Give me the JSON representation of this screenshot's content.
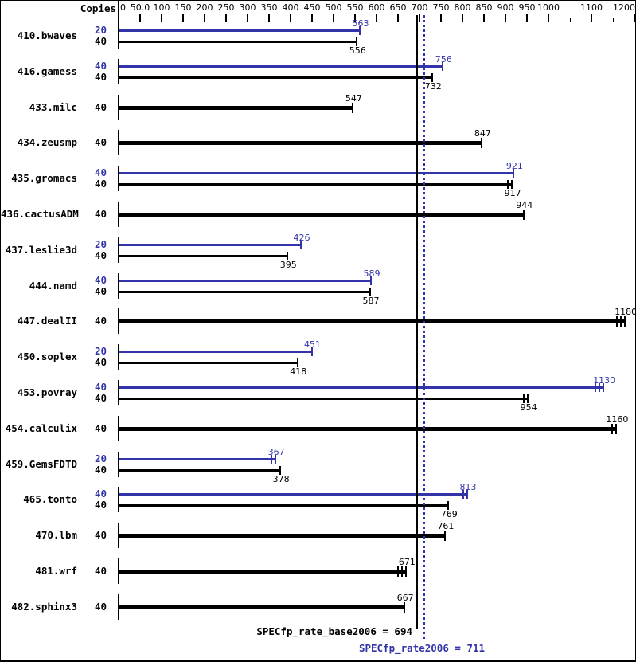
{
  "header": {
    "copies_label": "Copies"
  },
  "colors": {
    "peak": "#3333aa",
    "base": "#000000"
  },
  "summary": {
    "base_label": "SPECfp_rate_base2006 = 694",
    "peak_label": "SPECfp_rate2006 = 711",
    "base_value": 694,
    "peak_value": 711
  },
  "chart_data": {
    "type": "bar",
    "orientation": "horizontal",
    "title": "",
    "xlabel": "",
    "ylabel": "",
    "axis": {
      "min": 0,
      "max": 1200,
      "labeled_ticks": [
        {
          "v": 0,
          "label": "0"
        },
        {
          "v": 50,
          "label": "50.0"
        },
        {
          "v": 100,
          "label": "100"
        },
        {
          "v": 150,
          "label": "150"
        },
        {
          "v": 200,
          "label": "200"
        },
        {
          "v": 250,
          "label": "250"
        },
        {
          "v": 300,
          "label": "300"
        },
        {
          "v": 350,
          "label": "350"
        },
        {
          "v": 400,
          "label": "400"
        },
        {
          "v": 450,
          "label": "450"
        },
        {
          "v": 500,
          "label": "500"
        },
        {
          "v": 550,
          "label": "550"
        },
        {
          "v": 600,
          "label": "600"
        },
        {
          "v": 650,
          "label": "650"
        },
        {
          "v": 700,
          "label": "700"
        },
        {
          "v": 750,
          "label": "750"
        },
        {
          "v": 800,
          "label": "800"
        },
        {
          "v": 850,
          "label": "850"
        },
        {
          "v": 900,
          "label": "900"
        },
        {
          "v": 950,
          "label": "950"
        },
        {
          "v": 1000,
          "label": "1000"
        },
        {
          "v": 1100,
          "label": "1100"
        },
        {
          "v": 1200,
          "label": "1200"
        }
      ],
      "minor_ticks": [
        1050,
        1150
      ]
    },
    "reference_lines": [
      {
        "name": "base",
        "value": 694,
        "style": "solid",
        "color": "#000000"
      },
      {
        "name": "peak",
        "value": 711,
        "style": "dotted",
        "color": "#3333aa"
      }
    ],
    "benchmarks": [
      {
        "name": "410.bwaves",
        "bars": [
          {
            "copies": "20",
            "value": 563,
            "series": "peak",
            "style": "thin",
            "caps": 1,
            "label_pos": "above"
          },
          {
            "copies": "40",
            "value": 556,
            "series": "base",
            "style": "thin",
            "caps": 1,
            "label_pos": "below"
          }
        ]
      },
      {
        "name": "416.gamess",
        "bars": [
          {
            "copies": "40",
            "value": 756,
            "series": "peak",
            "style": "thin",
            "caps": 1,
            "label_pos": "above"
          },
          {
            "copies": "40",
            "value": 732,
            "series": "base",
            "style": "thin",
            "caps": 1,
            "label_pos": "below"
          }
        ]
      },
      {
        "name": "433.milc",
        "bars": [
          {
            "copies": "40",
            "value": 547,
            "series": "base",
            "style": "thick",
            "caps": 1,
            "label_pos": "above"
          }
        ]
      },
      {
        "name": "434.zeusmp",
        "bars": [
          {
            "copies": "40",
            "value": 847,
            "series": "base",
            "style": "thick",
            "caps": 1,
            "label_pos": "above"
          }
        ]
      },
      {
        "name": "435.gromacs",
        "bars": [
          {
            "copies": "40",
            "value": 921,
            "series": "peak",
            "style": "thin",
            "caps": 1,
            "label_pos": "above"
          },
          {
            "copies": "40",
            "value": 917,
            "series": "base",
            "style": "thin",
            "caps": 2,
            "label_pos": "below"
          }
        ]
      },
      {
        "name": "436.cactusADM",
        "bars": [
          {
            "copies": "40",
            "value": 944,
            "series": "base",
            "style": "thick",
            "caps": 1,
            "label_pos": "above"
          }
        ]
      },
      {
        "name": "437.leslie3d",
        "bars": [
          {
            "copies": "20",
            "value": 426,
            "series": "peak",
            "style": "thin",
            "caps": 1,
            "label_pos": "above"
          },
          {
            "copies": "40",
            "value": 395,
            "series": "base",
            "style": "thin",
            "caps": 1,
            "label_pos": "below"
          }
        ]
      },
      {
        "name": "444.namd",
        "bars": [
          {
            "copies": "40",
            "value": 589,
            "series": "peak",
            "style": "thin",
            "caps": 1,
            "label_pos": "above"
          },
          {
            "copies": "40",
            "value": 587,
            "series": "base",
            "style": "thin",
            "caps": 1,
            "label_pos": "below"
          }
        ]
      },
      {
        "name": "447.dealII",
        "bars": [
          {
            "copies": "40",
            "value": 1180,
            "series": "base",
            "style": "thick",
            "caps": 3,
            "label_pos": "above"
          }
        ]
      },
      {
        "name": "450.soplex",
        "bars": [
          {
            "copies": "20",
            "value": 451,
            "series": "peak",
            "style": "thin",
            "caps": 1,
            "label_pos": "above"
          },
          {
            "copies": "40",
            "value": 418,
            "series": "base",
            "style": "thin",
            "caps": 1,
            "label_pos": "below"
          }
        ]
      },
      {
        "name": "453.povray",
        "bars": [
          {
            "copies": "40",
            "value": 1130,
            "series": "peak",
            "style": "thin",
            "caps": 3,
            "label_pos": "above"
          },
          {
            "copies": "40",
            "value": 954,
            "series": "base",
            "style": "thin",
            "caps": 2,
            "label_pos": "below"
          }
        ]
      },
      {
        "name": "454.calculix",
        "bars": [
          {
            "copies": "40",
            "value": 1160,
            "series": "base",
            "style": "thick",
            "caps": 2,
            "label_pos": "above"
          }
        ]
      },
      {
        "name": "459.GemsFDTD",
        "bars": [
          {
            "copies": "20",
            "value": 367,
            "series": "peak",
            "style": "thin",
            "caps": 2,
            "label_pos": "above"
          },
          {
            "copies": "40",
            "value": 378,
            "series": "base",
            "style": "thin",
            "caps": 1,
            "label_pos": "below"
          }
        ]
      },
      {
        "name": "465.tonto",
        "bars": [
          {
            "copies": "40",
            "value": 813,
            "series": "peak",
            "style": "thin",
            "caps": 2,
            "label_pos": "above"
          },
          {
            "copies": "40",
            "value": 769,
            "series": "base",
            "style": "thin",
            "caps": 1,
            "label_pos": "below"
          }
        ]
      },
      {
        "name": "470.lbm",
        "bars": [
          {
            "copies": "40",
            "value": 761,
            "series": "base",
            "style": "thick",
            "caps": 1,
            "label_pos": "above"
          }
        ]
      },
      {
        "name": "481.wrf",
        "bars": [
          {
            "copies": "40",
            "value": 671,
            "series": "base",
            "style": "thick",
            "caps": 3,
            "label_pos": "above"
          }
        ]
      },
      {
        "name": "482.sphinx3",
        "bars": [
          {
            "copies": "40",
            "value": 667,
            "series": "base",
            "style": "thick",
            "caps": 1,
            "label_pos": "above"
          }
        ]
      }
    ]
  }
}
